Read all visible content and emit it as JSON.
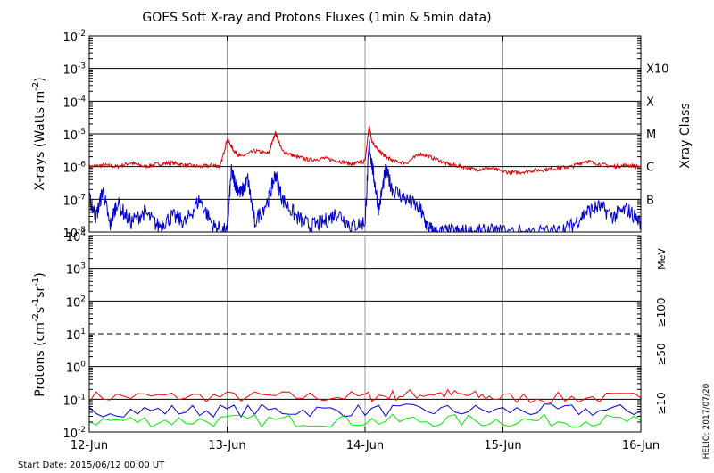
{
  "chart_data": [
    {
      "type": "line",
      "title": "GOES Soft X-ray and Protons Fluxes   (1min & 5min data)",
      "ylabel": "X-rays (Watts m",
      "ylabel_sup": "-2",
      "ylabel_end": ")",
      "yscale": "log",
      "ylim": [
        1e-08,
        0.01
      ],
      "y_ticks": [
        {
          "base": "10",
          "exp": "-2"
        },
        {
          "base": "10",
          "exp": "-3"
        },
        {
          "base": "10",
          "exp": "-4"
        },
        {
          "base": "10",
          "exp": "-5"
        },
        {
          "base": "10",
          "exp": "-6"
        },
        {
          "base": "10",
          "exp": "-7"
        },
        {
          "base": "10",
          "exp": "-8"
        }
      ],
      "right_axis_title": "Xray Class",
      "xray_classes": [
        "X10",
        "X",
        "M",
        "C",
        "B"
      ],
      "x_ticks": [
        "12-Jun",
        "13-Jun",
        "14-Jun",
        "15-Jun",
        "16-Jun"
      ],
      "xlim_days": [
        0,
        4
      ],
      "grid": true,
      "series": [
        {
          "color": "#dd0000",
          "x": [
            0,
            0.1,
            0.2,
            0.3,
            0.4,
            0.5,
            0.6,
            0.7,
            0.8,
            0.9,
            0.95,
            1.0,
            1.05,
            1.1,
            1.2,
            1.3,
            1.35,
            1.4,
            1.5,
            1.6,
            1.7,
            1.8,
            1.9,
            1.95,
            2.0,
            2.03,
            2.05,
            2.1,
            2.15,
            2.2,
            2.3,
            2.4,
            2.5,
            2.6,
            2.7,
            2.8,
            2.9,
            3.0,
            3.1,
            3.2,
            3.3,
            3.4,
            3.5,
            3.6,
            3.7,
            3.8,
            3.9,
            4.0
          ],
          "y": [
            1e-06,
            1.1e-06,
            1e-06,
            1.3e-06,
            1e-06,
            1.2e-06,
            1.3e-06,
            1.1e-06,
            1e-06,
            1.1e-06,
            1e-06,
            7e-06,
            3e-06,
            2e-06,
            3e-06,
            2.5e-06,
            1.1e-05,
            3e-06,
            2e-06,
            1.6e-06,
            1.8e-06,
            1.5e-06,
            1.2e-06,
            1.3e-06,
            1.5e-06,
            1.8e-05,
            6e-06,
            3e-06,
            2e-06,
            1.5e-06,
            1.3e-06,
            2.5e-06,
            1.8e-06,
            1.2e-06,
            1e-06,
            8e-07,
            9e-07,
            7e-07,
            6.5e-07,
            7.5e-07,
            8e-07,
            9e-07,
            1e-06,
            1.5e-06,
            1.2e-06,
            1e-06,
            1.1e-06,
            1e-06
          ]
        },
        {
          "color": "#0000cc",
          "x": [
            0,
            0.05,
            0.1,
            0.15,
            0.2,
            0.3,
            0.4,
            0.5,
            0.6,
            0.7,
            0.8,
            0.9,
            1.0,
            1.03,
            1.06,
            1.1,
            1.15,
            1.2,
            1.3,
            1.35,
            1.4,
            1.5,
            1.6,
            1.7,
            1.8,
            1.9,
            2.0,
            2.03,
            2.06,
            2.1,
            2.15,
            2.2,
            2.3,
            2.4,
            2.45,
            2.5,
            2.6,
            2.7,
            2.8,
            2.9,
            3.0,
            3.2,
            3.4,
            3.5,
            3.6,
            3.7,
            3.8,
            3.9,
            4.0
          ],
          "y": [
            1e-07,
            3e-08,
            2e-07,
            1.5e-08,
            8e-08,
            2e-08,
            4e-08,
            1.5e-08,
            3e-08,
            2e-08,
            1e-07,
            1.5e-08,
            1e-08,
            7e-07,
            3e-07,
            1.5e-07,
            4e-07,
            2e-08,
            1e-07,
            6e-07,
            1e-07,
            3e-08,
            1.5e-08,
            2e-08,
            4e-08,
            1.5e-08,
            2e-08,
            5e-06,
            6e-07,
            5e-08,
            8e-07,
            2e-07,
            1e-07,
            5e-08,
            1.5e-08,
            1e-08,
            1e-08,
            1e-08,
            1e-08,
            1e-08,
            1e-08,
            1e-08,
            1e-08,
            1.5e-08,
            4e-08,
            6e-08,
            3e-08,
            5e-08,
            2e-08
          ]
        }
      ]
    },
    {
      "type": "line",
      "ylabel": "Protons (cm",
      "ylabel_sup1": "-2",
      "ylabel_mid": "s",
      "ylabel_sup2": "-1",
      "ylabel_mid2": "sr",
      "ylabel_sup3": "-1",
      "ylabel_end": ")",
      "yscale": "log",
      "ylim": [
        0.01,
        10000
      ],
      "y_ticks": [
        {
          "base": "10",
          "exp": "4"
        },
        {
          "base": "10",
          "exp": "3"
        },
        {
          "base": "10",
          "exp": "2"
        },
        {
          "base": "10",
          "exp": "1"
        },
        {
          "base": "10",
          "exp": "0"
        },
        {
          "base": "10",
          "exp": "-1"
        },
        {
          "base": "10",
          "exp": "-2"
        }
      ],
      "unit_label": "MeV",
      "x_ticks": [
        "12-Jun",
        "13-Jun",
        "14-Jun",
        "15-Jun",
        "16-Jun"
      ],
      "xlim_days": [
        0,
        4
      ],
      "grid": true,
      "series": [
        {
          "name": "≥10",
          "color": "#ff0000",
          "x": [
            0,
            1,
            2,
            2.5,
            3,
            4
          ],
          "y": [
            0.12,
            0.12,
            0.12,
            0.15,
            0.11,
            0.11
          ]
        },
        {
          "name": "≥50",
          "color": "#0000dd",
          "x": [
            0,
            1,
            2,
            3,
            4
          ],
          "y": [
            0.045,
            0.045,
            0.045,
            0.045,
            0.045
          ]
        },
        {
          "name": "≥100",
          "color": "#00ee00",
          "x": [
            0,
            1,
            2,
            3,
            4
          ],
          "y": [
            0.022,
            0.022,
            0.022,
            0.022,
            0.022
          ]
        }
      ]
    }
  ],
  "footer": {
    "start_date": "Start Date: 2015/06/12 00:00 UT",
    "credit": "HELIO: 2017/07/20"
  }
}
